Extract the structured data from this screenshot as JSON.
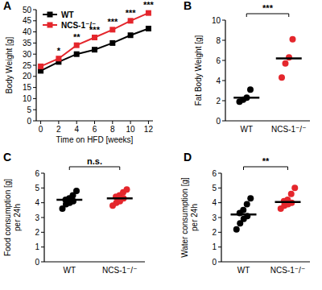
{
  "chart_data": [
    {
      "type": "line",
      "title": "A",
      "x_label": "Time on HFD [weeks]",
      "y_label": "Body Weight [g]",
      "x": [
        0,
        2,
        4,
        6,
        8,
        10,
        12
      ],
      "xlim": [
        -0.5,
        12.5
      ],
      "xticks": [
        0,
        2,
        4,
        6,
        8,
        10,
        12
      ],
      "ylim": [
        0,
        50
      ],
      "yticks": [
        0,
        5,
        10,
        15,
        20,
        25,
        30,
        35,
        40,
        45,
        50
      ],
      "legend": "upper left",
      "series": [
        {
          "name": "WT",
          "color": "#000000",
          "marker": "square",
          "values": [
            22.5,
            26.5,
            30,
            32,
            35,
            38.5,
            41.5
          ]
        },
        {
          "name": "NCS-1⁻/⁻",
          "color": "#e4262c",
          "marker": "square",
          "values": [
            24.5,
            28,
            34,
            37.5,
            41,
            45,
            48.5
          ]
        }
      ],
      "annotations": [
        {
          "x": 2,
          "label": "*"
        },
        {
          "x": 4,
          "label": "**"
        },
        {
          "x": 6,
          "label": "***"
        },
        {
          "x": 8,
          "label": "***"
        },
        {
          "x": 10,
          "label": "***"
        },
        {
          "x": 12,
          "label": "***"
        }
      ]
    },
    {
      "type": "strip",
      "title": "B",
      "y_label": "Fat Body Weight [g]",
      "categories": [
        "WT",
        "NCS-1⁻/⁻"
      ],
      "colors": [
        "#000000",
        "#e4262c"
      ],
      "ylim": [
        0,
        10
      ],
      "yticks": [
        0,
        2,
        4,
        6,
        8,
        10
      ],
      "points": [
        [
          1.9,
          2.1,
          2.3,
          3.1
        ],
        [
          4.3,
          5.7,
          6.3,
          8.1
        ]
      ],
      "values": [
        2.3,
        6.2
      ],
      "annotations": [
        "***"
      ]
    },
    {
      "type": "strip",
      "title": "C",
      "y_label": [
        "Food consumption [g]",
        "per 24h"
      ],
      "categories": [
        "WT",
        "NCS-1⁻/⁻"
      ],
      "colors": [
        "#000000",
        "#e4262c"
      ],
      "ylim": [
        0,
        6
      ],
      "yticks": [
        0,
        1,
        2,
        3,
        4,
        5,
        6
      ],
      "points": [
        [
          3.6,
          3.9,
          4.0,
          4.1,
          4.2,
          4.3,
          4.5,
          4.8
        ],
        [
          3.8,
          4.0,
          4.1,
          4.3,
          4.4,
          4.5,
          4.7,
          4.9
        ]
      ],
      "values": [
        4.2,
        4.3
      ],
      "annotations": [
        "n.s."
      ]
    },
    {
      "type": "strip",
      "title": "D",
      "y_label": [
        "Water consumption [g]",
        "per 24h"
      ],
      "categories": [
        "WT",
        "NCS-1⁻/⁻"
      ],
      "colors": [
        "#000000",
        "#e4262c"
      ],
      "ylim": [
        0,
        6
      ],
      "yticks": [
        0,
        1,
        2,
        3,
        4,
        5,
        6
      ],
      "points": [
        [
          2.2,
          2.6,
          2.9,
          3.1,
          3.3,
          3.5,
          3.9,
          4.3
        ],
        [
          3.6,
          3.8,
          3.9,
          4.0,
          4.1,
          4.2,
          4.6,
          5.0
        ]
      ],
      "values": [
        3.2,
        4.05
      ],
      "annotations": [
        "**"
      ]
    }
  ]
}
